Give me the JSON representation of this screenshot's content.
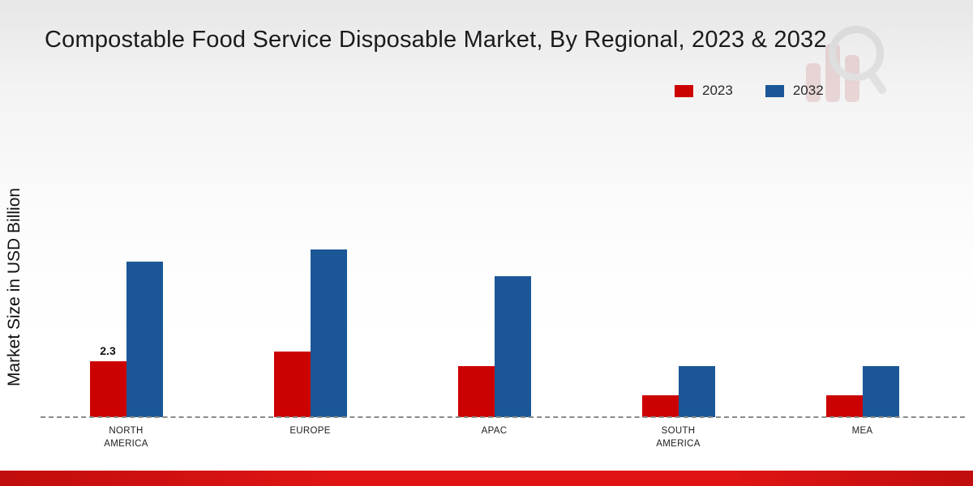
{
  "chart_data": {
    "type": "bar",
    "title": "Compostable Food Service Disposable Market, By Regional, 2023 & 2032",
    "xlabel": "",
    "ylabel": "Market Size in USD Billion",
    "categories": [
      "NORTH AMERICA",
      "EUROPE",
      "APAC",
      "SOUTH AMERICA",
      "MEA"
    ],
    "series": [
      {
        "name": "2023",
        "color": "#cc0202",
        "values": [
          2.3,
          2.7,
          2.1,
          0.9,
          0.9
        ]
      },
      {
        "name": "2032",
        "color": "#1b5796",
        "values": [
          6.4,
          6.9,
          5.8,
          2.1,
          2.1
        ]
      }
    ],
    "data_labels": [
      {
        "category": "NORTH AMERICA",
        "series": "2023",
        "text": "2.3"
      }
    ],
    "ylim": [
      0,
      7.5
    ],
    "grid": false,
    "legend_position": "top-right",
    "baseline_style": "dashed"
  }
}
